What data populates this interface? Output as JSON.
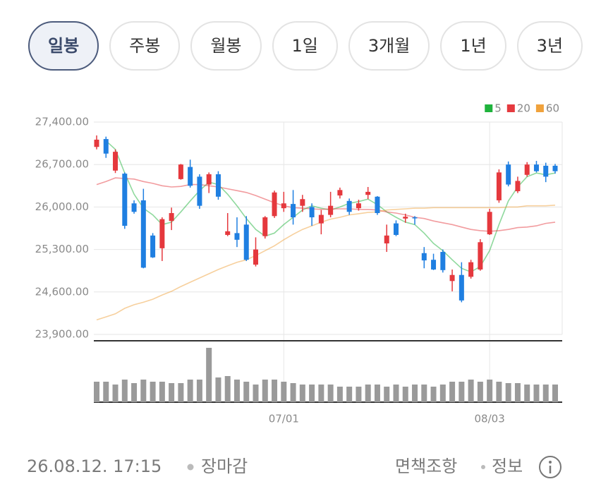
{
  "tabs": [
    {
      "label": "일봉",
      "selected": true
    },
    {
      "label": "주봉",
      "selected": false
    },
    {
      "label": "월봉",
      "selected": false
    },
    {
      "label": "1일",
      "selected": false
    },
    {
      "label": "3개월",
      "selected": false
    },
    {
      "label": "1년",
      "selected": false
    },
    {
      "label": "3년",
      "selected": false
    }
  ],
  "chart_data": {
    "type": "candlestick",
    "categories": [
      null,
      null,
      null,
      null,
      null,
      null,
      null,
      null,
      null,
      null,
      null,
      null,
      null,
      null,
      null,
      null,
      null,
      null,
      null,
      null,
      "07/01",
      null,
      null,
      null,
      null,
      null,
      null,
      null,
      null,
      null,
      null,
      null,
      null,
      null,
      null,
      null,
      null,
      null,
      null,
      null,
      null,
      null,
      "08/03",
      null,
      null,
      null,
      null,
      null,
      null,
      null
    ],
    "open": [
      26990,
      27120,
      26600,
      26550,
      26060,
      26110,
      25530,
      25320,
      25770,
      26460,
      26660,
      26500,
      26370,
      26540,
      25540,
      25570,
      25710,
      25050,
      25520,
      25850,
      25980,
      26050,
      26020,
      26000,
      25730,
      25870,
      26190,
      26100,
      25980,
      26200,
      26170,
      25400,
      25730,
      25810,
      25830,
      25240,
      25130,
      25260,
      24780,
      24880,
      24850,
      24970,
      25550,
      26110,
      26700,
      26260,
      26530,
      26700,
      26680,
      26680
    ],
    "high": [
      27180,
      27160,
      26950,
      26570,
      26110,
      26300,
      25570,
      25830,
      25990,
      26710,
      26780,
      26540,
      26570,
      26590,
      25900,
      25830,
      25850,
      25500,
      25850,
      26270,
      26250,
      26280,
      26200,
      26060,
      25950,
      26250,
      26320,
      26140,
      26120,
      26330,
      26180,
      25710,
      25780,
      25890,
      25850,
      25340,
      25230,
      25300,
      24970,
      25090,
      25130,
      25470,
      25970,
      26620,
      26750,
      26500,
      26740,
      26760,
      26730,
      26710
    ],
    "low": [
      26950,
      26810,
      26560,
      25640,
      25890,
      24990,
      25160,
      25110,
      25620,
      26450,
      26320,
      25970,
      26230,
      26120,
      25520,
      25340,
      25110,
      25020,
      25480,
      25820,
      25920,
      25710,
      25920,
      25690,
      25550,
      25830,
      26140,
      25870,
      25940,
      26130,
      25870,
      25260,
      25520,
      25740,
      25710,
      24990,
      24960,
      24920,
      24610,
      24430,
      24820,
      24950,
      25540,
      26070,
      26340,
      26230,
      26500,
      26570,
      26410,
      26550
    ],
    "close": [
      27110,
      26880,
      26910,
      25690,
      25920,
      25000,
      25170,
      25800,
      25900,
      26700,
      26350,
      26020,
      26540,
      26170,
      25600,
      25460,
      25130,
      25300,
      25830,
      26240,
      26060,
      25830,
      26130,
      25830,
      25870,
      26020,
      26280,
      25920,
      26060,
      26250,
      25900,
      25530,
      25540,
      25840,
      25820,
      25120,
      24970,
      24960,
      24880,
      24460,
      25090,
      25420,
      25920,
      26570,
      26370,
      26430,
      26700,
      26590,
      26500,
      26590
    ],
    "up_color": "#e5383d",
    "down_color": "#1f7fe1",
    "series": [
      {
        "name": "5",
        "color": "#1fb33c",
        "values": [
          null,
          27090,
          26950,
          26560,
          26210,
          25980,
          25870,
          25710,
          25750,
          25920,
          26100,
          26270,
          26410,
          26370,
          26210,
          26020,
          25810,
          25630,
          25520,
          25570,
          25710,
          25830,
          25950,
          26020,
          25980,
          25950,
          26000,
          26060,
          26090,
          26130,
          26040,
          25920,
          25830,
          25750,
          25710,
          25570,
          25400,
          25280,
          25130,
          24990,
          24930,
          25020,
          25280,
          25710,
          26100,
          26330,
          26500,
          26560,
          26530,
          26560
        ]
      },
      {
        "name": "20",
        "color": "#e53a3f",
        "values": [
          26370,
          26420,
          26480,
          26470,
          26460,
          26420,
          26390,
          26350,
          26330,
          26340,
          26370,
          26370,
          26350,
          26330,
          26300,
          26270,
          26240,
          26190,
          26130,
          26070,
          26020,
          25990,
          25980,
          25970,
          25960,
          25970,
          25970,
          25970,
          25960,
          25960,
          25950,
          25920,
          25900,
          25870,
          25830,
          25810,
          25770,
          25740,
          25710,
          25670,
          25630,
          25610,
          25600,
          25610,
          25630,
          25660,
          25670,
          25690,
          25730,
          25750
        ]
      },
      {
        "name": "60",
        "color": "#f0a23c",
        "values": [
          24140,
          24190,
          24240,
          24330,
          24390,
          24430,
          24480,
          24550,
          24610,
          24690,
          24760,
          24830,
          24900,
          24970,
          25030,
          25090,
          25130,
          25200,
          25280,
          25360,
          25460,
          25550,
          25630,
          25690,
          25750,
          25800,
          25830,
          25870,
          25890,
          25910,
          25920,
          25950,
          25960,
          25970,
          25980,
          25980,
          25990,
          25990,
          25990,
          25990,
          25990,
          25990,
          25990,
          25990,
          26000,
          26000,
          26020,
          26020,
          26020,
          26030
        ]
      }
    ],
    "volume": {
      "color": "#9a9a9a",
      "values": [
        29,
        29,
        25,
        32,
        27,
        32,
        29,
        29,
        27,
        27,
        32,
        32,
        77,
        35,
        37,
        32,
        29,
        25,
        32,
        32,
        29,
        27,
        25,
        25,
        25,
        25,
        22,
        22,
        22,
        25,
        25,
        22,
        25,
        22,
        25,
        25,
        22,
        25,
        29,
        29,
        32,
        29,
        32,
        29,
        27,
        27,
        25,
        25,
        25,
        25
      ]
    },
    "ylim": [
      23900,
      27400
    ],
    "yticks": [
      {
        "value": 23900,
        "label": "23,900.00"
      },
      {
        "value": 24600,
        "label": "24,600.00"
      },
      {
        "value": 25300,
        "label": "25,300.00"
      },
      {
        "value": 26000,
        "label": "26,000.00"
      },
      {
        "value": 26700,
        "label": "26,700.00"
      },
      {
        "value": 27400,
        "label": "27,400.00"
      }
    ],
    "grid": true,
    "legend": "top-right"
  },
  "footer": {
    "timestamp": "26.08.12. 17:15",
    "status": "장마감",
    "disclaimer": "면책조항",
    "info": "정보"
  }
}
